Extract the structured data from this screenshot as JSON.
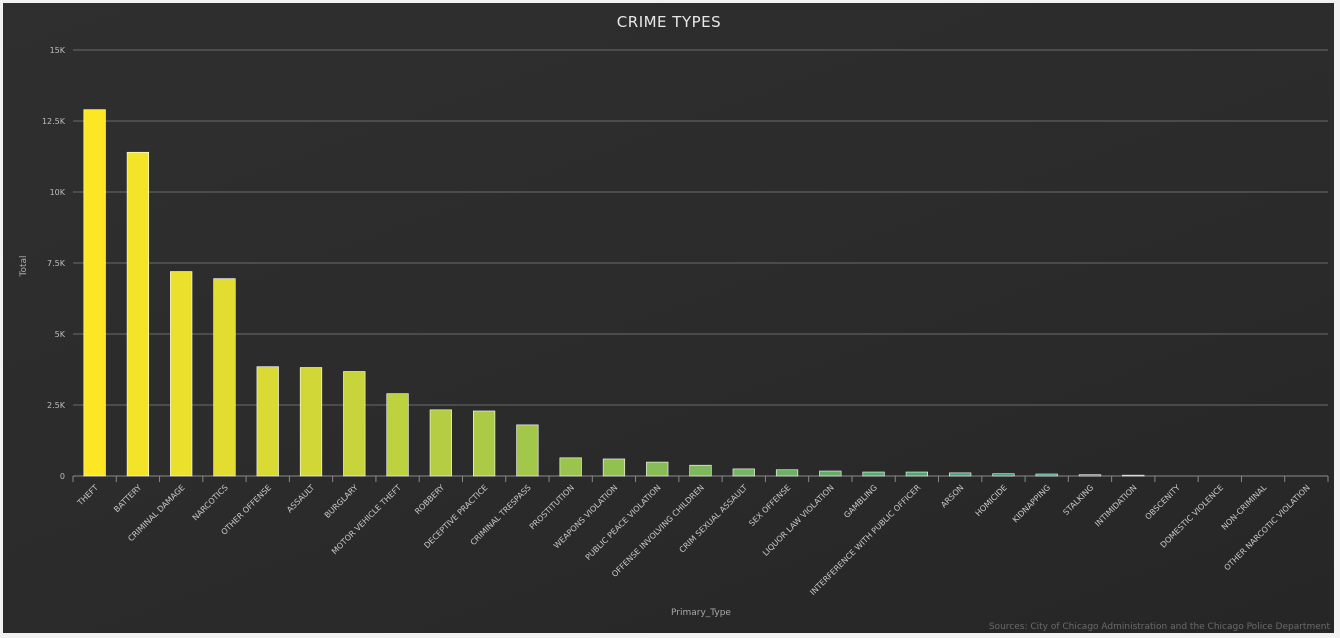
{
  "chart_data": {
    "type": "bar",
    "title": "CRIME TYPES",
    "xlabel": "Primary_Type",
    "ylabel": "Total",
    "ylim": [
      0,
      15000
    ],
    "yticks": [
      {
        "value": 0,
        "label": "0"
      },
      {
        "value": 2500,
        "label": "2.5K"
      },
      {
        "value": 5000,
        "label": "5K"
      },
      {
        "value": 7500,
        "label": "7.5K"
      },
      {
        "value": 10000,
        "label": "10K"
      },
      {
        "value": 12500,
        "label": "12.5K"
      },
      {
        "value": 15000,
        "label": "15K"
      }
    ],
    "grid": true,
    "legend": "none",
    "categories": [
      "THEFT",
      "BATTERY",
      "CRIMINAL DAMAGE",
      "NARCOTICS",
      "OTHER OFFENSE",
      "ASSAULT",
      "BURGLARY",
      "MOTOR VEHICLE THEFT",
      "ROBBERY",
      "DECEPTIVE PRACTICE",
      "CRIMINAL TRESPASS",
      "PROSTITUTION",
      "WEAPONS VIOLATION",
      "PUBLIC PEACE VIOLATION",
      "OFFENSE INVOLVING CHILDREN",
      "CRIM SEXUAL ASSAULT",
      "SEX OFFENSE",
      "LIQUOR LAW VIOLATION",
      "GAMBLING",
      "INTERFERENCE WITH PUBLIC OFFICER",
      "ARSON",
      "HOMICIDE",
      "KIDNAPPING",
      "STALKING",
      "INTIMIDATION",
      "OBSCENITY",
      "DOMESTIC VIOLENCE",
      "NON-CRIMINAL",
      "OTHER NARCOTIC VIOLATION"
    ],
    "values": [
      12900,
      11400,
      7200,
      6950,
      3850,
      3820,
      3680,
      2900,
      2330,
      2290,
      1800,
      640,
      600,
      490,
      380,
      250,
      220,
      175,
      140,
      140,
      110,
      80,
      70,
      45,
      30,
      8,
      3,
      2,
      1
    ],
    "colors": {
      "gradient_start": "#fde725",
      "gradient_mid": "#8fc052",
      "gradient_end": "#21918c",
      "bar_stroke": "#ffffff"
    }
  },
  "source_text": "Sources: City of Chicago Administration and the Chicago Police Department"
}
